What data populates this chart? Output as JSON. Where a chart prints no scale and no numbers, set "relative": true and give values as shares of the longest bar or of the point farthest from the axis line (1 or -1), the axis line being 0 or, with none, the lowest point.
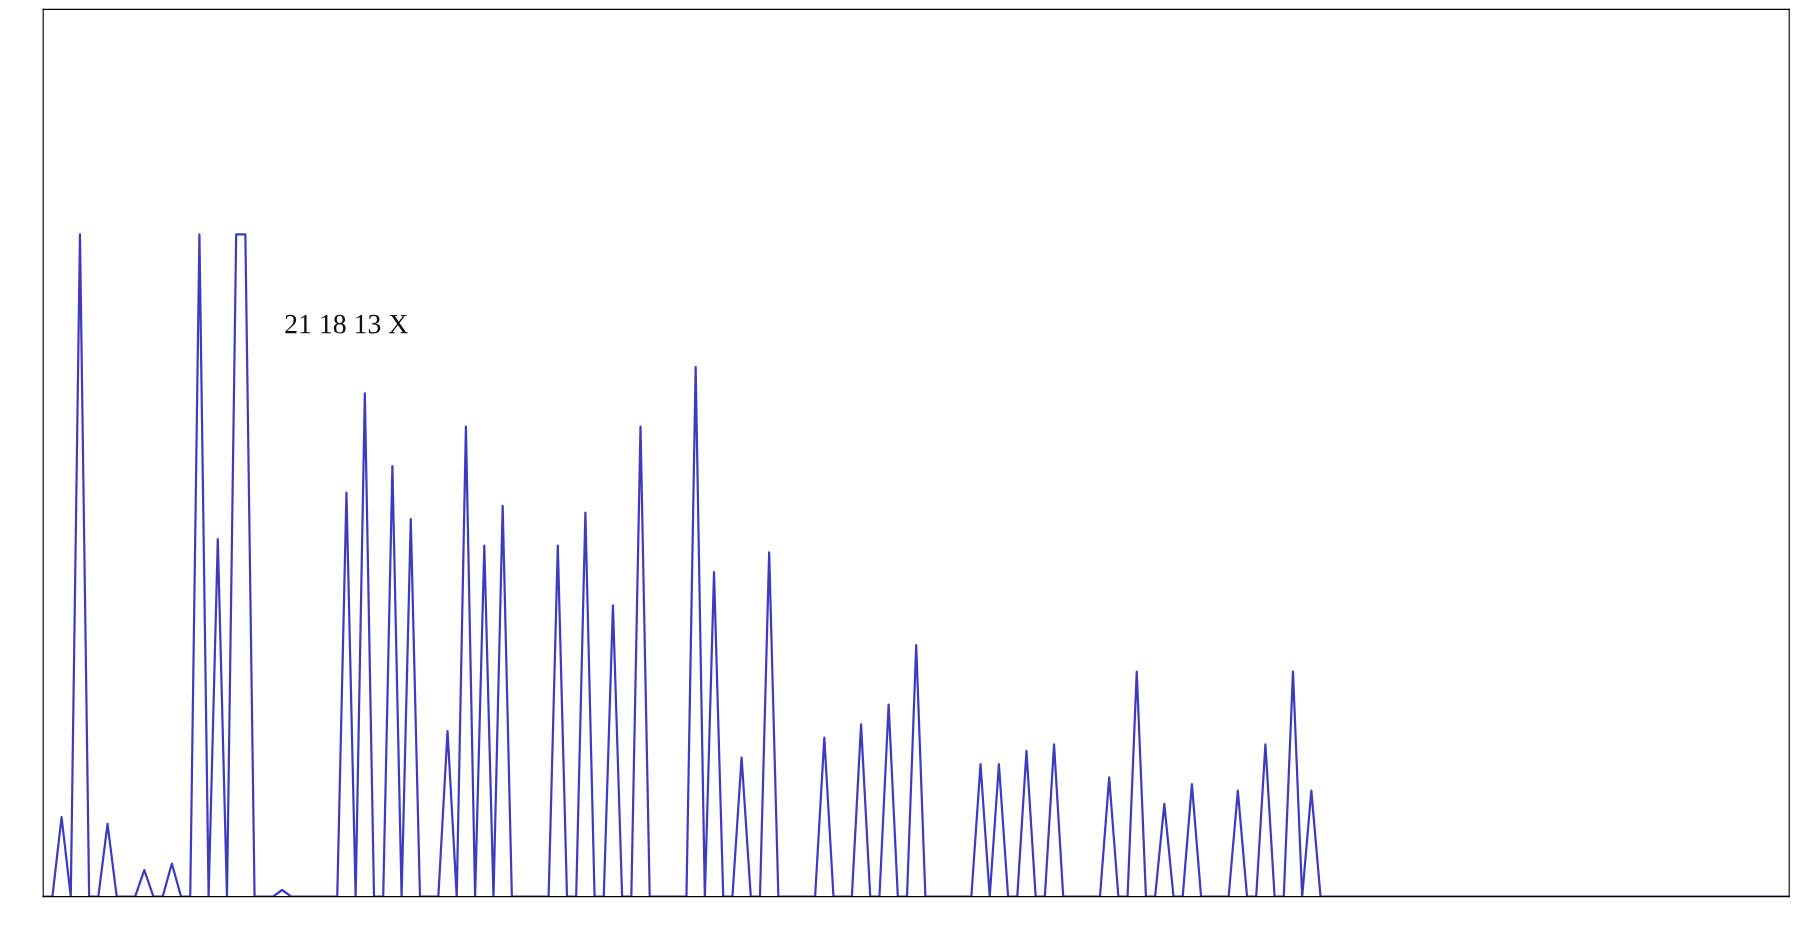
{
  "chart_data": {
    "type": "line",
    "relative": true,
    "legend": false,
    "annotations": [
      "21 18 13 X"
    ],
    "categories": [
      null,
      null,
      null,
      null,
      null,
      null,
      null,
      null,
      null,
      null,
      null,
      null,
      null,
      null,
      null,
      null,
      null,
      null,
      null,
      null,
      null,
      null,
      null,
      null,
      null,
      null,
      null,
      null,
      null,
      null,
      null,
      null,
      null,
      null,
      null,
      null,
      null,
      null,
      null,
      null,
      null,
      null,
      null,
      null,
      null,
      null,
      null,
      null,
      null,
      null,
      null,
      null,
      null,
      null,
      null,
      null,
      null,
      null,
      null,
      null,
      null,
      null,
      null,
      null,
      null,
      null,
      null,
      null,
      null,
      null,
      null,
      null,
      null,
      null,
      null,
      null,
      null,
      null,
      null,
      null,
      null,
      null,
      null,
      null,
      null,
      null,
      null,
      null,
      null,
      null,
      null,
      null,
      null,
      null,
      null,
      null,
      null,
      null,
      null,
      null,
      null,
      null,
      null,
      null,
      null,
      null,
      null,
      null,
      null,
      null,
      null,
      null,
      null,
      null,
      null,
      null,
      null,
      null,
      null,
      null,
      null,
      null,
      null,
      null,
      null,
      null,
      null,
      null,
      null,
      null,
      null,
      null,
      null,
      null,
      null,
      null,
      null,
      null,
      null,
      null,
      null,
      null,
      null,
      null,
      null,
      null,
      null,
      null,
      null,
      null,
      null,
      null,
      null,
      null,
      null,
      null,
      null,
      null,
      null,
      null,
      null,
      null,
      null,
      null,
      null,
      null,
      null,
      null,
      null,
      null,
      null,
      null,
      null,
      null,
      null,
      null,
      null,
      null,
      null,
      null,
      null,
      null,
      null,
      null,
      null,
      null,
      null,
      null,
      null,
      null,
      null
    ],
    "series": [
      {
        "color": "#3c3cc0",
        "values": [
          0,
          0,
          0.12,
          0,
          1.0,
          0,
          0,
          0.11,
          0,
          0,
          0,
          0.04,
          0,
          0,
          0.05,
          0,
          0,
          1.0,
          0,
          0.54,
          0,
          1.0,
          1.0,
          0,
          0,
          0,
          0.01,
          0,
          0,
          0,
          0,
          0,
          0,
          0.61,
          0,
          0.76,
          0,
          0,
          0.65,
          0,
          0.57,
          0,
          0,
          0,
          0.25,
          0,
          0.71,
          0,
          0.53,
          0,
          0.59,
          0,
          0,
          0,
          0,
          0,
          0.53,
          0,
          0,
          0.58,
          0,
          0,
          0.44,
          0,
          0,
          0.71,
          0,
          0,
          0,
          0,
          0,
          0.8,
          0,
          0.49,
          0,
          0,
          0.21,
          0,
          0,
          0.52,
          0,
          0,
          0,
          0,
          0,
          0.24,
          0,
          0,
          0,
          0.26,
          0,
          0,
          0.29,
          0,
          0,
          0.38,
          0,
          0,
          0,
          0,
          0,
          0,
          0.2,
          0,
          0.2,
          0,
          0,
          0.22,
          0,
          0,
          0.23,
          0,
          0,
          0,
          0,
          0,
          0.18,
          0,
          0,
          0.34,
          0,
          0,
          0.14,
          0,
          0,
          0.17,
          0,
          0,
          0,
          0,
          0.16,
          0,
          0,
          0.23,
          0,
          0,
          0.34,
          0,
          0.16,
          0,
          0,
          0,
          0,
          0,
          0,
          0,
          0,
          0,
          0,
          0,
          0,
          0,
          0,
          0,
          0,
          0,
          0,
          0,
          0,
          0,
          0,
          0,
          0,
          0,
          0,
          0,
          0,
          0,
          0,
          0,
          0,
          0,
          0,
          0,
          0,
          0,
          0,
          0,
          0,
          0,
          0,
          0,
          0,
          0,
          0,
          0,
          0,
          0,
          0,
          0,
          0
        ]
      }
    ]
  }
}
